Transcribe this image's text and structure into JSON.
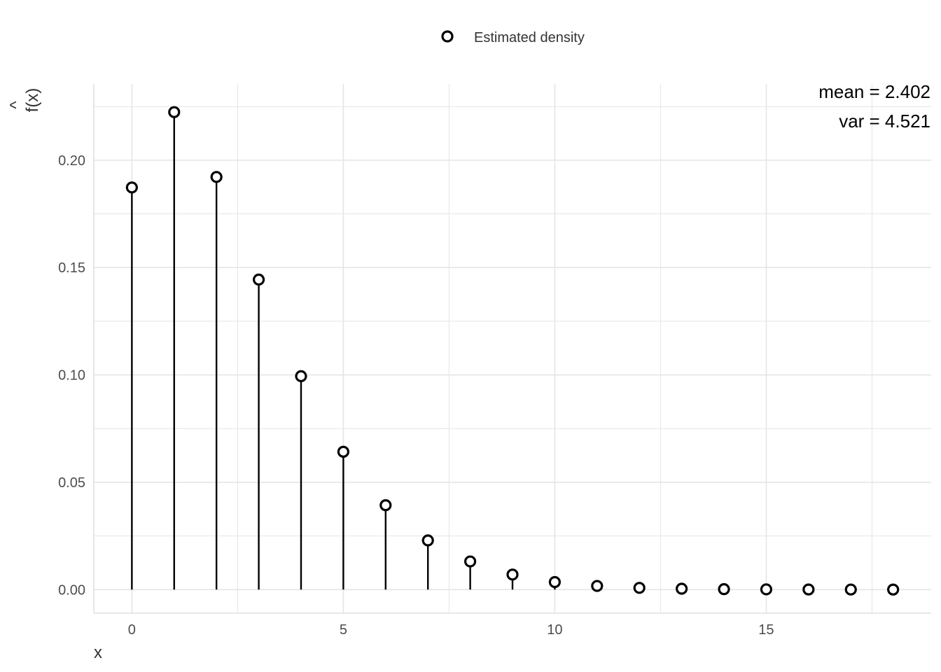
{
  "chart_data": {
    "type": "scatter",
    "style": "lollipop / stem plot with hollow circle markers",
    "xlabel": "x",
    "ylabel": "f(x)",
    "ylabel_hat": "^",
    "legend": {
      "position": "top",
      "entries": [
        "Estimated density"
      ]
    },
    "annotations": [
      "mean = 2.402",
      "var = 4.521"
    ],
    "xlim": [
      -0.9,
      18.9
    ],
    "ylim": [
      -0.011,
      0.2355
    ],
    "x_ticks": [
      0,
      5,
      10,
      15
    ],
    "y_ticks": [
      0.0,
      0.05,
      0.1,
      0.15,
      0.2
    ],
    "x_tick_labels": [
      "0",
      "5",
      "10",
      "15"
    ],
    "y_tick_labels": [
      "0.00",
      "0.05",
      "0.10",
      "0.15",
      "0.20"
    ],
    "grid": true,
    "series": [
      {
        "name": "Estimated density",
        "x": [
          0,
          1,
          2,
          3,
          4,
          5,
          6,
          7,
          8,
          9,
          10,
          11,
          12,
          13,
          14,
          15,
          16,
          17,
          18
        ],
        "values": [
          0.1873,
          0.2224,
          0.1922,
          0.1444,
          0.0994,
          0.0642,
          0.0393,
          0.0229,
          0.0131,
          0.007,
          0.0035,
          0.0017,
          0.0008,
          0.0004,
          0.0002,
          0.0001,
          5e-05,
          2e-05,
          1e-05
        ]
      }
    ],
    "colors": {
      "marker": "#000000",
      "stem": "#000000",
      "grid": "#e5e5e5",
      "background": "#ffffff"
    }
  }
}
